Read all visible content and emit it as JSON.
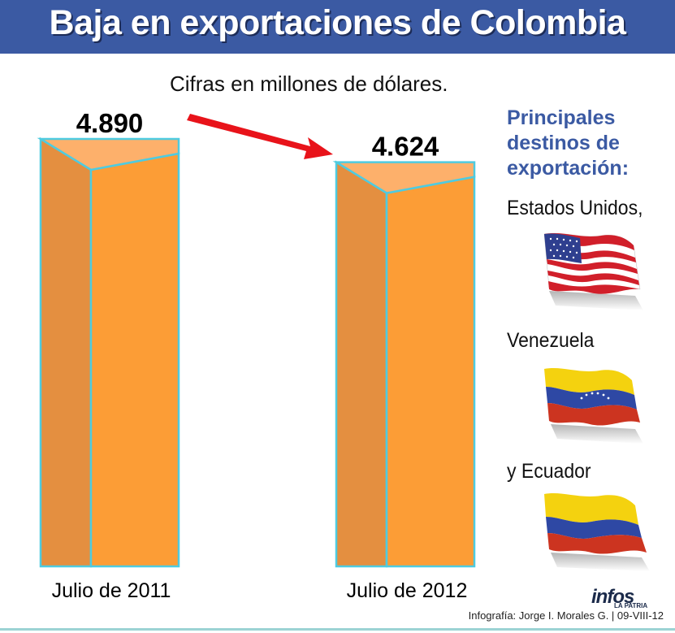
{
  "header": {
    "title": "Baja en exportaciones de Colombia"
  },
  "subtitle": "Cifras en millones de dólares.",
  "chart_data": {
    "type": "bar",
    "categories": [
      "Julio de 2011",
      "Julio de 2012"
    ],
    "values": [
      4890,
      4624
    ],
    "value_labels": [
      "4.890",
      "4.624"
    ],
    "title": "Baja en exportaciones de Colombia",
    "subtitle": "Cifras en millones de dólares.",
    "colors": {
      "front": "#fc9d36",
      "side": "#e48f40",
      "top": "#fdb06b",
      "edge": "#4ecbe0",
      "arrow": "#e8131a"
    }
  },
  "destinations": {
    "title": "Principales destinos de exportación:",
    "items": [
      {
        "label": "Estados Unidos,",
        "flag": "usa-flag"
      },
      {
        "label": "Venezuela",
        "flag": "venezuela-flag"
      },
      {
        "label": "y Ecuador",
        "flag": "ecuador-flag"
      }
    ]
  },
  "logo": {
    "name": "infos",
    "sub": "LA PATRIA"
  },
  "credit": "Infografía: Jorge I. Morales G. | 09-VIII-12"
}
